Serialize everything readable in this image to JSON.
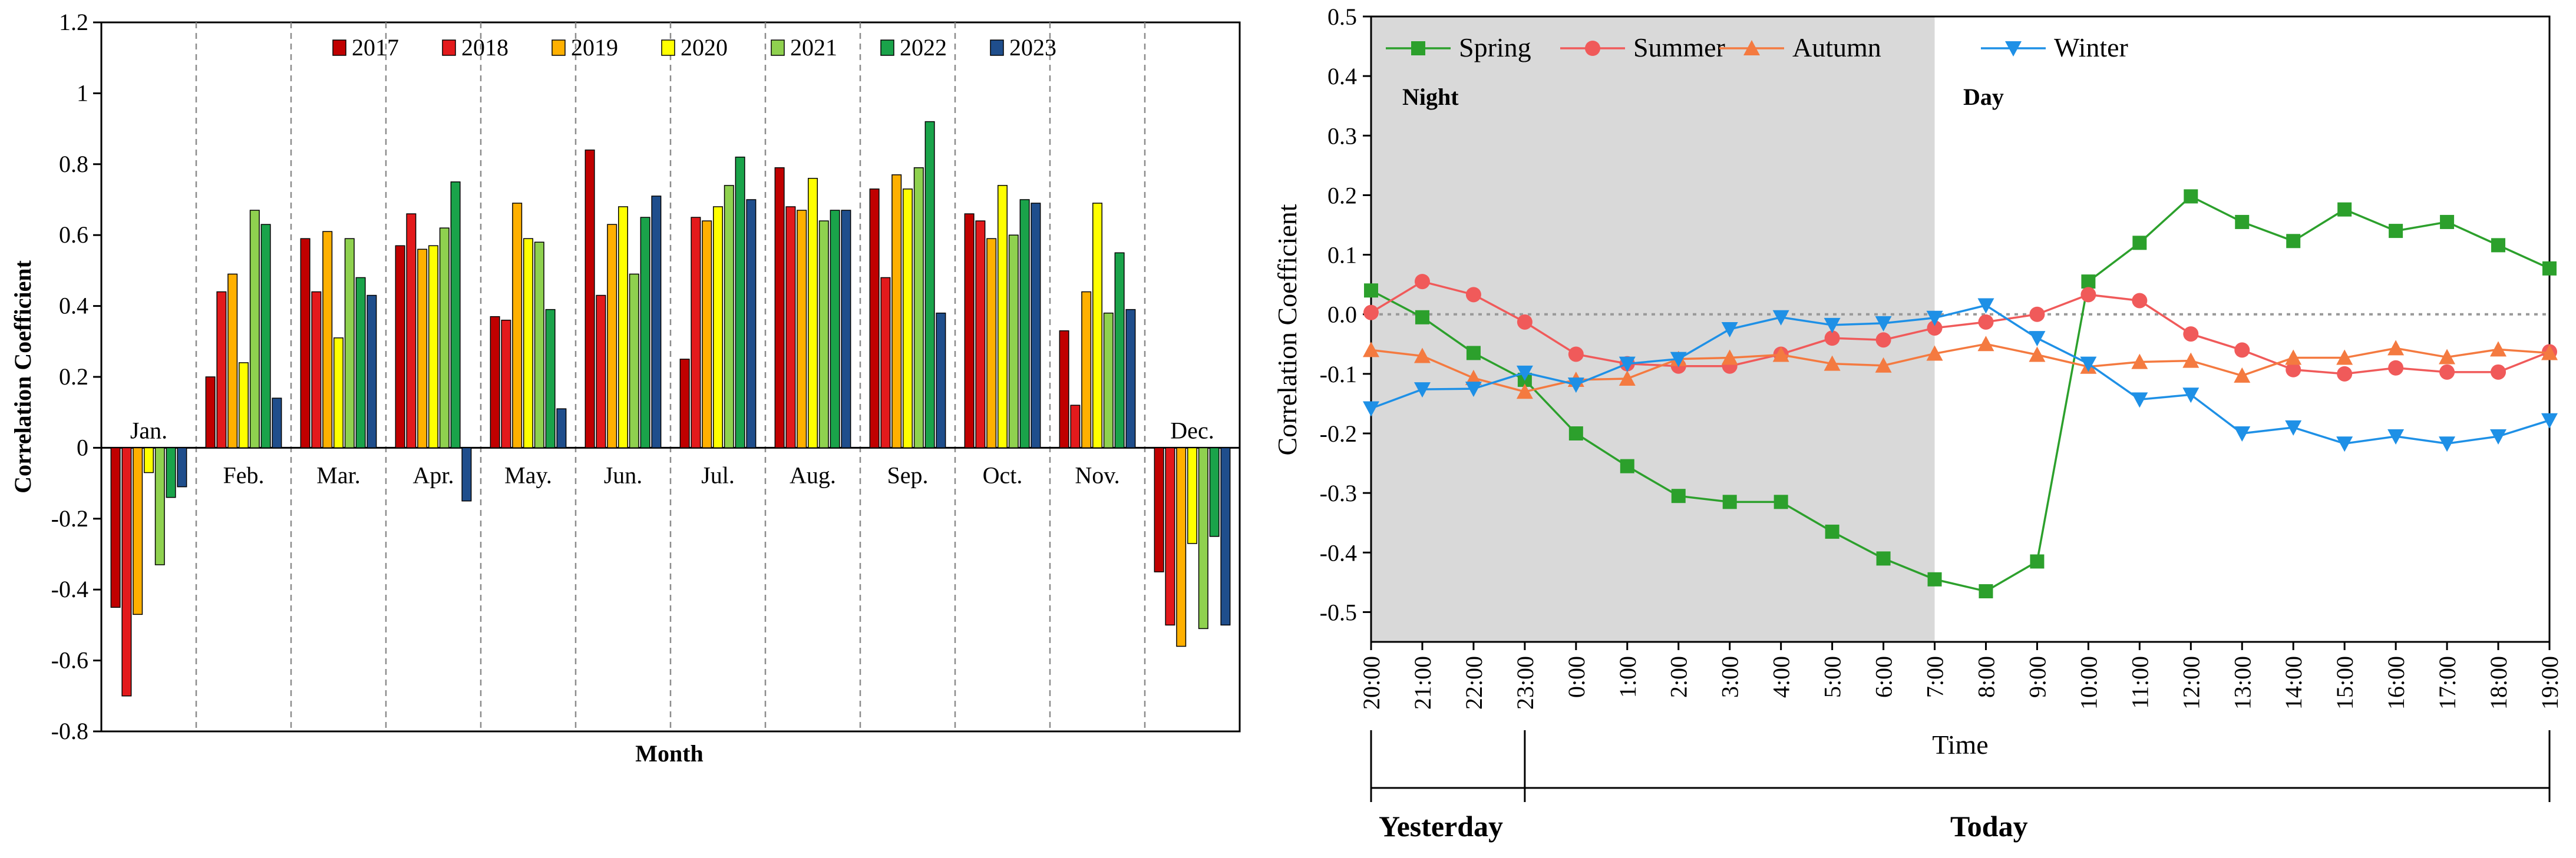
{
  "chart_data": [
    {
      "type": "bar",
      "title": "",
      "xlabel": "Month",
      "ylabel": "Correlation Coefficient",
      "ylim": [
        -0.8,
        1.2
      ],
      "yticks": [
        "1.2",
        "1",
        "0.8",
        "0.6",
        "0.4",
        "0.2",
        "0",
        "-0.2",
        "-0.4",
        "-0.6",
        "-0.8"
      ],
      "grid": false,
      "legend": "top",
      "categories": [
        "Jan.",
        "Feb.",
        "Mar.",
        "Apr.",
        "May.",
        "Jun.",
        "Jul.",
        "Aug.",
        "Sep.",
        "Oct.",
        "Nov.",
        "Dec."
      ],
      "series": [
        {
          "name": "2017",
          "color": "#c00000",
          "values": [
            -0.45,
            0.2,
            0.59,
            0.57,
            0.37,
            0.84,
            0.25,
            0.79,
            0.73,
            0.66,
            0.33,
            -0.35
          ]
        },
        {
          "name": "2018",
          "color": "#e31a1c",
          "values": [
            -0.7,
            0.44,
            0.44,
            0.66,
            0.36,
            0.43,
            0.65,
            0.68,
            0.48,
            0.64,
            0.12,
            -0.5
          ]
        },
        {
          "name": "2019",
          "color": "#ffb000",
          "values": [
            -0.47,
            0.49,
            0.61,
            0.56,
            0.69,
            0.63,
            0.64,
            0.67,
            0.77,
            0.59,
            0.44,
            -0.56
          ]
        },
        {
          "name": "2020",
          "color": "#ffff00",
          "values": [
            -0.07,
            0.24,
            0.31,
            0.57,
            0.59,
            0.68,
            0.68,
            0.76,
            0.73,
            0.74,
            0.69,
            -0.27
          ]
        },
        {
          "name": "2021",
          "color": "#8fd14f",
          "values": [
            -0.33,
            0.67,
            0.59,
            0.62,
            0.58,
            0.49,
            0.74,
            0.64,
            0.79,
            0.6,
            0.38,
            -0.51
          ]
        },
        {
          "name": "2022",
          "color": "#1aa34a",
          "values": [
            -0.14,
            0.63,
            0.48,
            0.75,
            0.39,
            0.65,
            0.82,
            0.67,
            0.92,
            0.7,
            0.55,
            -0.25
          ]
        },
        {
          "name": "2023",
          "color": "#1f4e8c",
          "values": [
            -0.11,
            0.14,
            0.43,
            -0.15,
            0.11,
            0.71,
            0.7,
            0.67,
            0.38,
            0.69,
            0.39,
            -0.5
          ]
        }
      ]
    },
    {
      "type": "line",
      "title": "",
      "xlabel": "Time",
      "ylabel": "Correlation Coefficient",
      "ylim": [
        -0.55,
        0.5
      ],
      "yticks": [
        "0.5",
        "0.4",
        "0.3",
        "0.2",
        "0.1",
        "0.0",
        "-0.1",
        "-0.2",
        "-0.3",
        "-0.4",
        "-0.5"
      ],
      "grid": false,
      "legend": "top",
      "x": [
        "20:00",
        "21:00",
        "22:00",
        "23:00",
        "0:00",
        "1:00",
        "2:00",
        "3:00",
        "4:00",
        "5:00",
        "6:00",
        "7:00",
        "8:00",
        "9:00",
        "10:00",
        "11:00",
        "12:00",
        "13:00",
        "14:00",
        "15:00",
        "16:00",
        "17:00",
        "18:00",
        "19:00"
      ],
      "series": [
        {
          "name": "Spring",
          "color": "#2ca02c",
          "marker": "square",
          "values": [
            0.04,
            -0.005,
            -0.065,
            -0.11,
            -0.2,
            -0.255,
            -0.305,
            -0.315,
            -0.315,
            -0.365,
            -0.41,
            -0.445,
            -0.465,
            -0.415,
            0.055,
            0.12,
            0.198,
            0.155,
            0.123,
            0.176,
            0.14,
            0.155,
            0.116,
            0.077
          ]
        },
        {
          "name": "Summer",
          "color": "#f05a5a",
          "marker": "circle",
          "values": [
            0.003,
            0.055,
            0.033,
            -0.013,
            -0.067,
            -0.083,
            -0.087,
            -0.087,
            -0.067,
            -0.04,
            -0.043,
            -0.023,
            -0.013,
            0.0,
            0.033,
            0.023,
            -0.033,
            -0.06,
            -0.093,
            -0.1,
            -0.09,
            -0.097,
            -0.097,
            -0.063
          ]
        },
        {
          "name": "Autumn",
          "color": "#f47a40",
          "marker": "triangle-up",
          "values": [
            -0.06,
            -0.07,
            -0.107,
            -0.13,
            -0.11,
            -0.108,
            -0.075,
            -0.073,
            -0.068,
            -0.083,
            -0.086,
            -0.066,
            -0.05,
            -0.068,
            -0.088,
            -0.08,
            -0.078,
            -0.103,
            -0.073,
            -0.073,
            -0.057,
            -0.072,
            -0.059,
            -0.065
          ]
        },
        {
          "name": "Winter",
          "color": "#1e90e6",
          "marker": "triangle-down",
          "values": [
            -0.158,
            -0.126,
            -0.125,
            -0.098,
            -0.118,
            -0.083,
            -0.075,
            -0.025,
            -0.005,
            -0.018,
            -0.015,
            -0.006,
            0.015,
            -0.04,
            -0.083,
            -0.143,
            -0.135,
            -0.2,
            -0.19,
            -0.217,
            -0.205,
            -0.217,
            -0.205,
            -0.178
          ]
        }
      ],
      "annotations": {
        "night": "Night",
        "day": "Day",
        "yesterday": "Yesterday",
        "today": "Today"
      }
    }
  ]
}
